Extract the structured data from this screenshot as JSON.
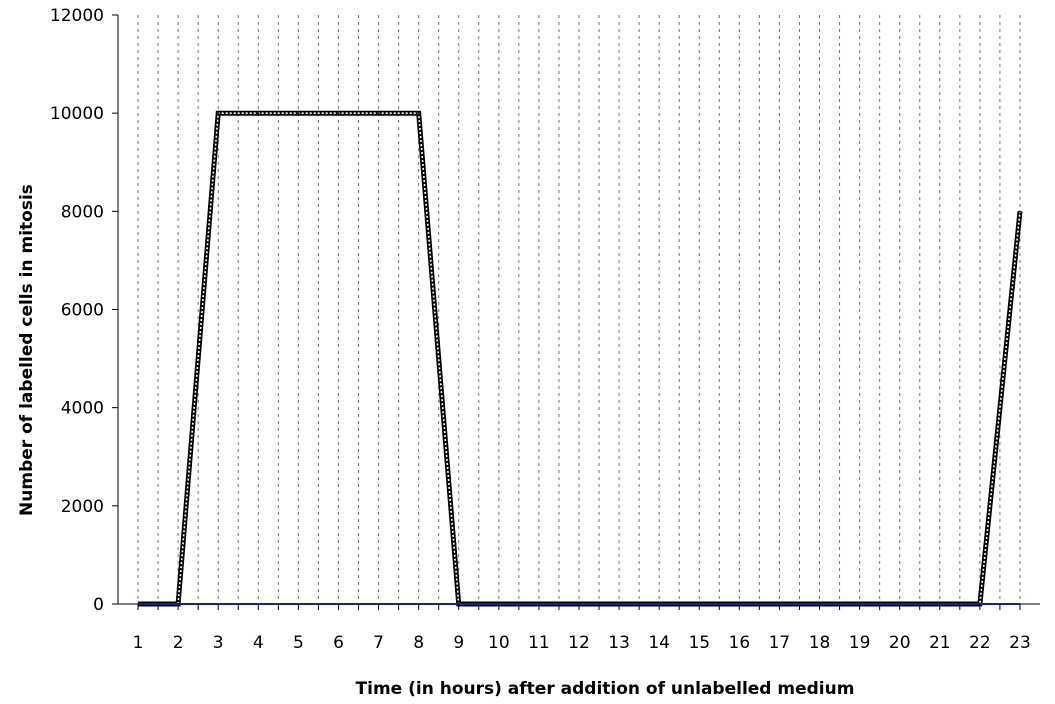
{
  "chart_data": {
    "type": "line",
    "title": "",
    "xlabel": "Time (in hours) after addition of unlabelled medium",
    "ylabel": "Number of labelled cells in mitosis",
    "x": [
      1,
      2,
      3,
      4,
      5,
      6,
      7,
      8,
      9,
      10,
      11,
      12,
      13,
      14,
      15,
      16,
      17,
      18,
      19,
      20,
      21,
      22,
      23
    ],
    "xlim": [
      0.5,
      23.5
    ],
    "ylim": [
      0,
      12000
    ],
    "yticks": [
      0,
      2000,
      4000,
      6000,
      8000,
      10000,
      12000
    ],
    "grid": "vertical dashed",
    "legend": "none",
    "series": [
      {
        "style": "dotted",
        "color": "#000000",
        "values": [
          0,
          0,
          10000,
          10000,
          10000,
          10000,
          10000,
          10000,
          0,
          0,
          0,
          0,
          0,
          0,
          0,
          0,
          0,
          0,
          0,
          0,
          0,
          0,
          8000
        ]
      },
      {
        "style": "solid",
        "color": "#1a237e",
        "values": [
          0,
          0,
          0,
          0,
          0,
          0,
          0,
          0,
          0,
          0,
          0,
          0,
          0,
          0,
          0,
          0,
          0,
          0,
          0,
          0,
          0,
          0,
          0
        ]
      }
    ]
  }
}
